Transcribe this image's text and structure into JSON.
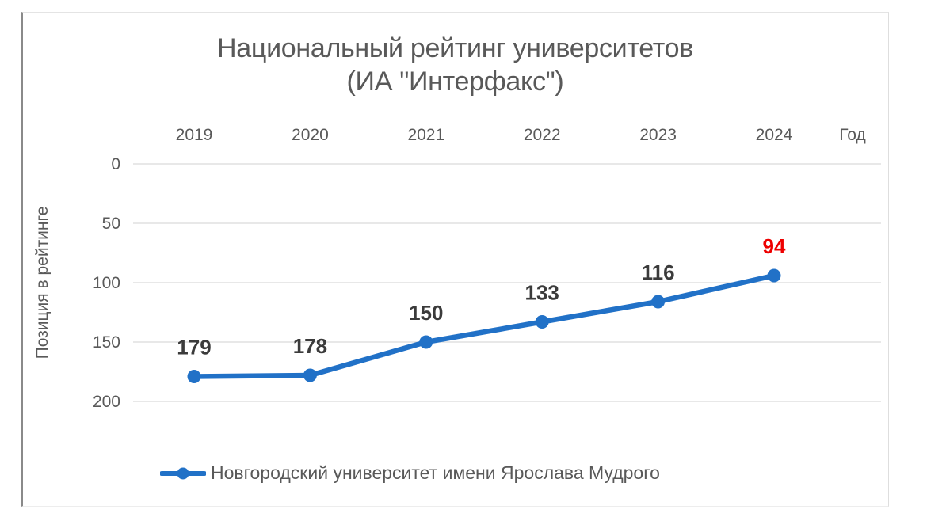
{
  "chart_data": {
    "type": "line",
    "title_lines": [
      "Национальный рейтинг университетов",
      "(ИА \"Интерфакс\")"
    ],
    "title": "Национальный рейтинг университетов (ИА \"Интерфакс\")",
    "xlabel": "Год",
    "ylabel": "Позиция в рейтинге",
    "categories": [
      "2019",
      "2020",
      "2021",
      "2022",
      "2023",
      "2024"
    ],
    "series": [
      {
        "name": "Новгородский университет имени Ярослава Мудрого",
        "values": [
          179,
          178,
          150,
          133,
          116,
          94
        ]
      }
    ],
    "data_labels": [
      "179",
      "178",
      "150",
      "133",
      "116",
      "94"
    ],
    "highlight_last_label": true,
    "y_ticks": [
      0,
      50,
      100,
      150,
      200
    ],
    "ylim": [
      0,
      200
    ],
    "y_axis_inverted": true,
    "grid": "horizontal",
    "legend_position": "bottom",
    "colors": {
      "line": "#2171C7",
      "marker": "#2171C7",
      "gridline": "#D9D9D9",
      "axis_text": "#595959",
      "title_text": "#595959",
      "data_label": "#3B3B3B",
      "highlight_label": "#EE0000"
    }
  }
}
